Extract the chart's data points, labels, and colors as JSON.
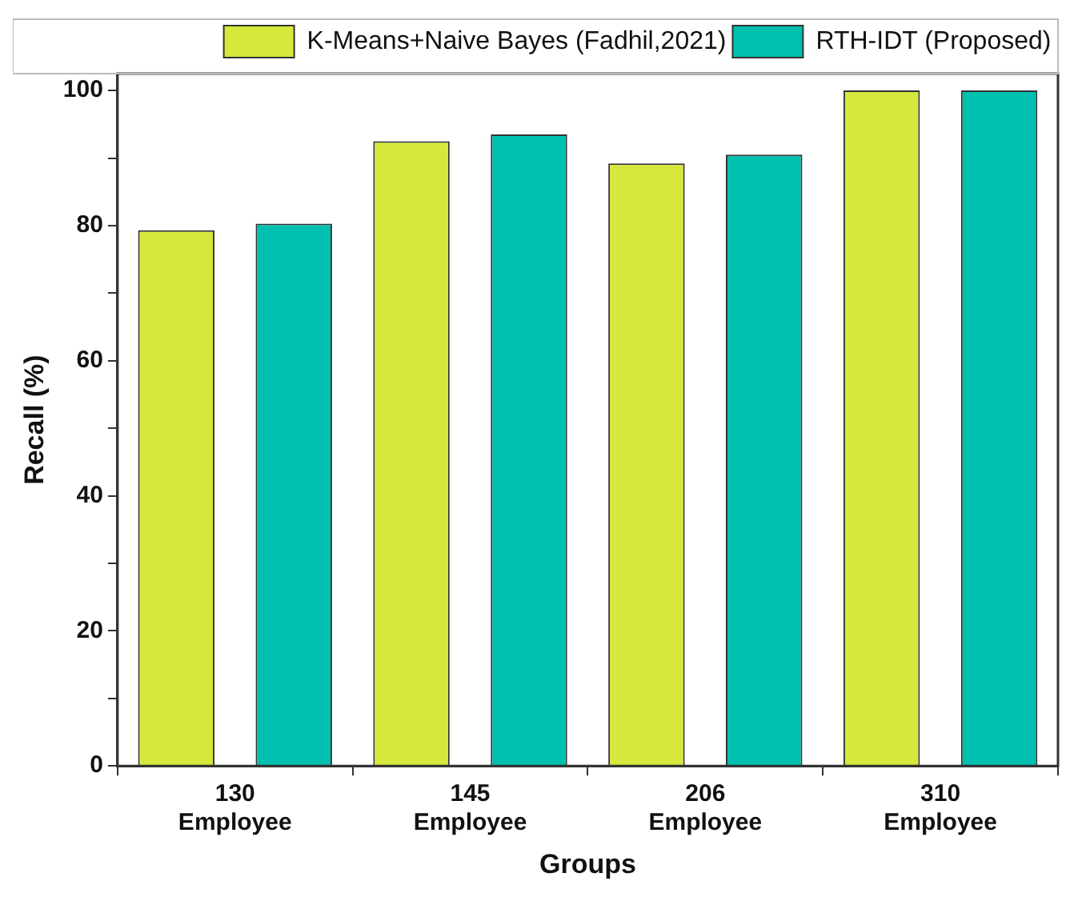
{
  "chart_data": {
    "type": "bar",
    "xlabel": "Groups",
    "ylabel": "Recall (%)",
    "categories": [
      "130 Employee",
      "145 Employee",
      "206 Employee",
      "310 Employee"
    ],
    "series": [
      {
        "name": "K-Means+Naive Bayes (Fadhil,2021)",
        "color": "#d6e83c",
        "values": [
          79.3,
          92.5,
          89.2,
          100
        ]
      },
      {
        "name": "RTH-IDT (Proposed)",
        "color": "#00c0b0",
        "values": [
          80.3,
          93.5,
          90.5,
          100
        ]
      }
    ],
    "ylim": [
      0,
      102.5
    ],
    "yticks": [
      0,
      {
        "value": 10,
        "label": null
      },
      20,
      {
        "value": 30,
        "label": null
      },
      40,
      {
        "value": 50,
        "label": null
      },
      60,
      {
        "value": 70,
        "label": null
      },
      80,
      {
        "value": 90,
        "label": null
      },
      100
    ],
    "grid": false,
    "legend": "top right"
  }
}
